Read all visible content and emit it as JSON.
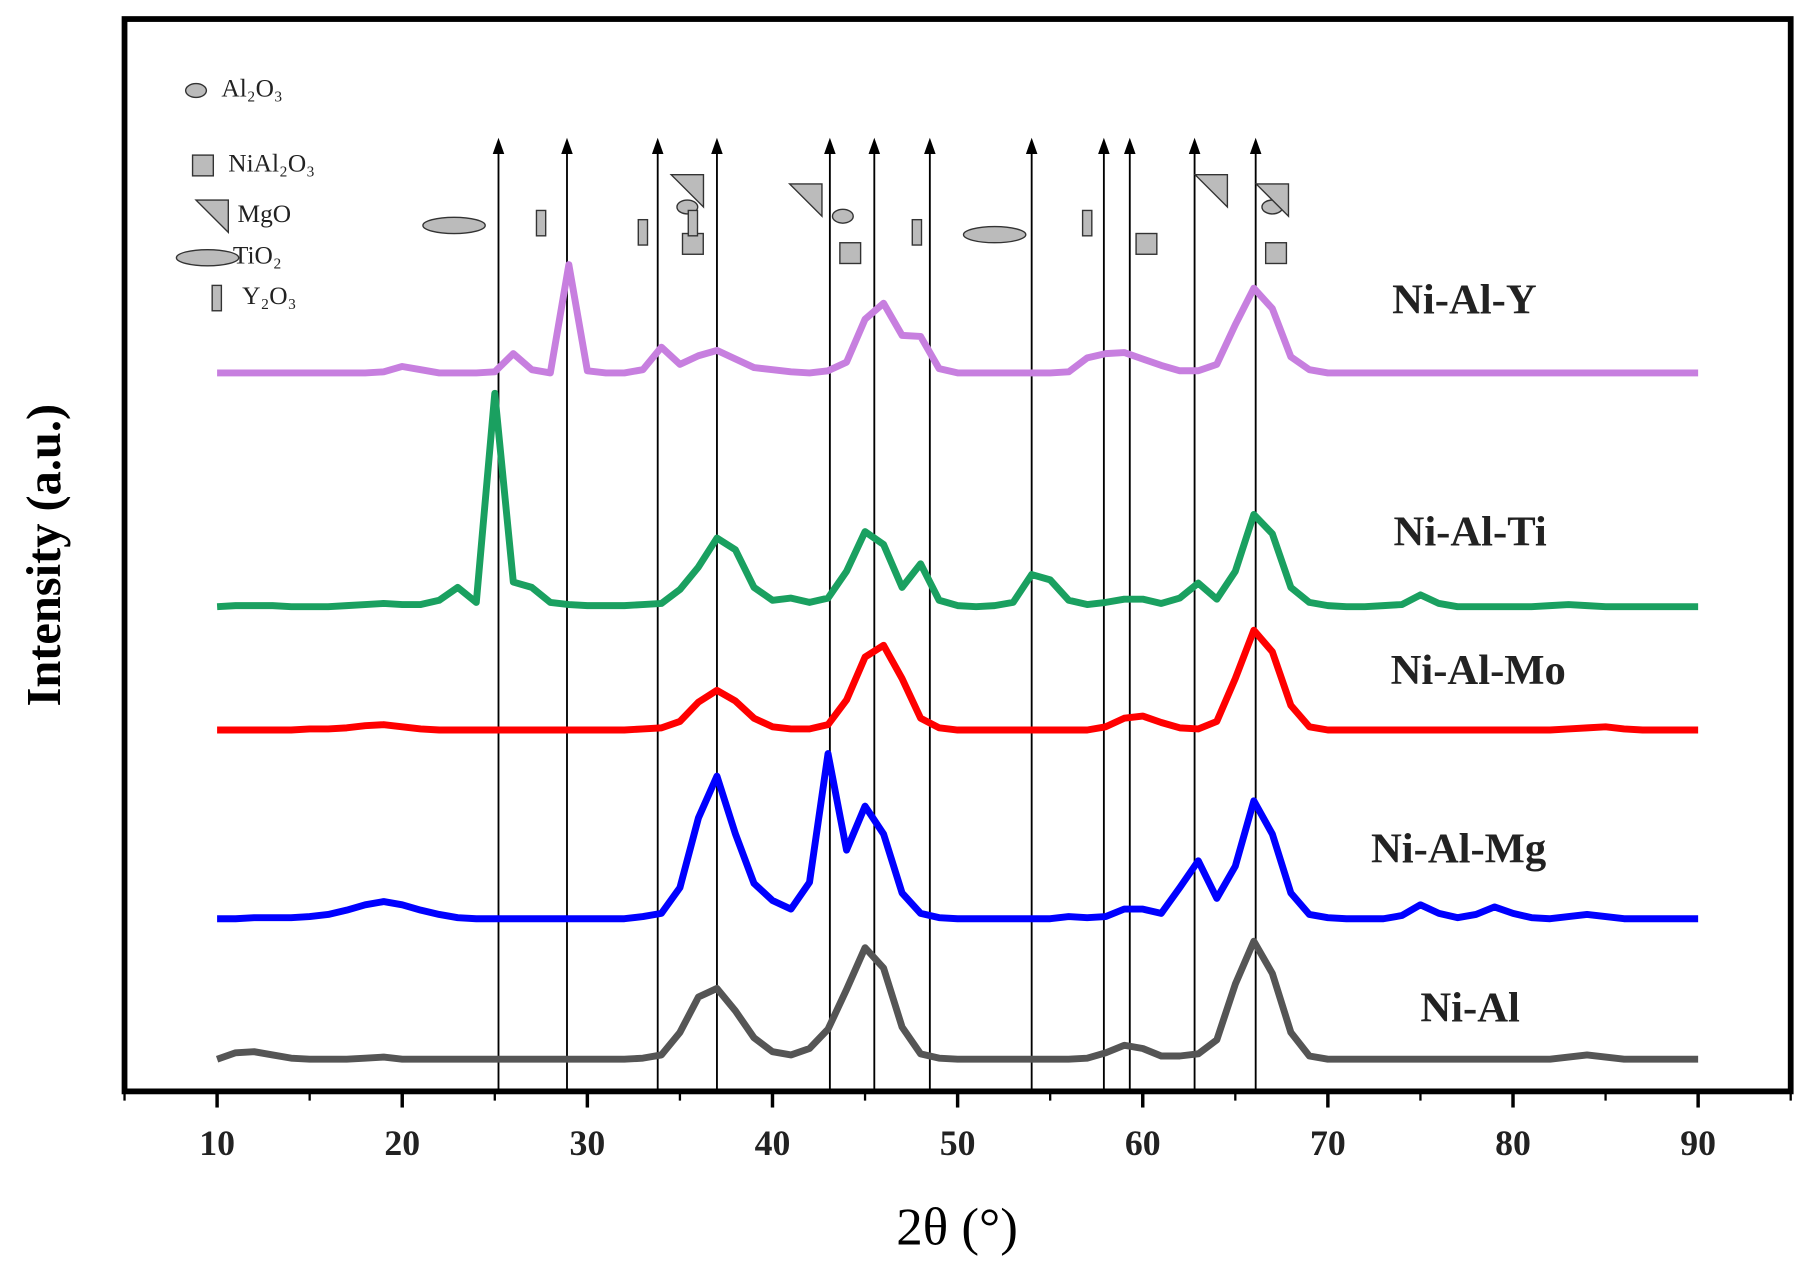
{
  "chart_data": {
    "type": "line",
    "xlabel": "2θ (°)",
    "ylabel": "Intensity (a.u.)",
    "xlim": [
      5,
      95
    ],
    "ylim": [
      0,
      100
    ],
    "xticks": [
      10,
      20,
      30,
      40,
      50,
      60,
      70,
      80,
      90
    ],
    "xticks_minor": [
      5,
      15,
      25,
      35,
      45,
      55,
      65,
      75,
      85,
      95
    ],
    "x": [
      10,
      11,
      12,
      13,
      14,
      15,
      16,
      17,
      18,
      19,
      20,
      21,
      22,
      23,
      24,
      25,
      26,
      27,
      28,
      29,
      30,
      31,
      32,
      33,
      34,
      35,
      36,
      37,
      38,
      39,
      40,
      41,
      42,
      43,
      44,
      45,
      46,
      47,
      48,
      49,
      50,
      51,
      52,
      53,
      54,
      55,
      56,
      57,
      58,
      59,
      60,
      61,
      62,
      63,
      64,
      65,
      66,
      67,
      68,
      69,
      70,
      71,
      72,
      73,
      74,
      75,
      76,
      77,
      78,
      79,
      80,
      81,
      82,
      83,
      84,
      85,
      86,
      87,
      88,
      89,
      90
    ],
    "series": [
      {
        "name": "Ni-Al",
        "color": "#555555",
        "values": [
          3.0,
          3.6,
          3.7,
          3.4,
          3.1,
          3.0,
          3.0,
          3.0,
          3.1,
          3.2,
          3.0,
          3.0,
          3.0,
          3.0,
          3.0,
          3.0,
          3.0,
          3.0,
          3.0,
          3.0,
          3.0,
          3.0,
          3.0,
          3.1,
          3.4,
          5.5,
          8.8,
          9.6,
          7.5,
          5.0,
          3.7,
          3.4,
          4.0,
          5.8,
          9.5,
          13.4,
          11.5,
          6.0,
          3.5,
          3.1,
          3.0,
          3.0,
          3.0,
          3.0,
          3.0,
          3.0,
          3.0,
          3.1,
          3.6,
          4.3,
          4.0,
          3.3,
          3.3,
          3.5,
          4.8,
          10.0,
          14.0,
          11.0,
          5.5,
          3.3,
          3.0,
          3.0,
          3.0,
          3.0,
          3.0,
          3.0,
          3.0,
          3.0,
          3.0,
          3.0,
          3.0,
          3.0,
          3.0,
          3.2,
          3.4,
          3.2,
          3.0,
          3.0,
          3.0,
          3.0,
          3.0
        ]
      },
      {
        "name": "Ni-Al-Mg",
        "color": "#0000ff",
        "values": [
          16.1,
          16.1,
          16.2,
          16.2,
          16.2,
          16.3,
          16.5,
          16.9,
          17.4,
          17.7,
          17.4,
          16.9,
          16.5,
          16.2,
          16.1,
          16.1,
          16.1,
          16.1,
          16.1,
          16.1,
          16.1,
          16.1,
          16.1,
          16.3,
          16.6,
          19.0,
          25.5,
          29.4,
          24.0,
          19.4,
          17.8,
          17.0,
          19.5,
          31.5,
          22.5,
          26.6,
          24.0,
          18.5,
          16.6,
          16.2,
          16.1,
          16.1,
          16.1,
          16.1,
          16.1,
          16.1,
          16.3,
          16.2,
          16.3,
          17.0,
          17.0,
          16.6,
          19.0,
          21.5,
          18.0,
          21.0,
          27.1,
          24.0,
          18.5,
          16.5,
          16.2,
          16.1,
          16.1,
          16.1,
          16.4,
          17.4,
          16.6,
          16.2,
          16.5,
          17.2,
          16.6,
          16.2,
          16.1,
          16.3,
          16.5,
          16.3,
          16.1,
          16.1,
          16.1,
          16.1,
          16.1
        ]
      },
      {
        "name": "Ni-Al-Mo",
        "color": "#ff0000",
        "values": [
          33.7,
          33.7,
          33.7,
          33.7,
          33.7,
          33.8,
          33.8,
          33.9,
          34.1,
          34.2,
          34.0,
          33.8,
          33.7,
          33.7,
          33.7,
          33.7,
          33.7,
          33.7,
          33.7,
          33.7,
          33.7,
          33.7,
          33.7,
          33.8,
          33.9,
          34.5,
          36.3,
          37.4,
          36.4,
          34.8,
          34.0,
          33.8,
          33.8,
          34.2,
          36.5,
          40.5,
          41.6,
          38.5,
          34.8,
          33.9,
          33.7,
          33.7,
          33.7,
          33.7,
          33.7,
          33.7,
          33.7,
          33.7,
          34.0,
          34.8,
          35.0,
          34.4,
          33.9,
          33.8,
          34.5,
          38.5,
          43.0,
          41.0,
          36.0,
          34.0,
          33.7,
          33.7,
          33.7,
          33.7,
          33.7,
          33.7,
          33.7,
          33.7,
          33.7,
          33.7,
          33.7,
          33.7,
          33.7,
          33.8,
          33.9,
          34.0,
          33.8,
          33.7,
          33.7,
          33.7,
          33.7
        ]
      },
      {
        "name": "Ni-Al-Ti",
        "color": "#1aa060",
        "values": [
          45.2,
          45.3,
          45.3,
          45.3,
          45.2,
          45.2,
          45.2,
          45.3,
          45.4,
          45.5,
          45.4,
          45.4,
          45.8,
          47.0,
          45.6,
          65.1,
          47.5,
          47.0,
          45.6,
          45.4,
          45.3,
          45.3,
          45.3,
          45.4,
          45.5,
          46.8,
          48.9,
          51.6,
          50.5,
          47.0,
          45.8,
          46.0,
          45.6,
          46.0,
          48.5,
          52.2,
          51.0,
          47.0,
          49.2,
          45.8,
          45.3,
          45.2,
          45.3,
          45.6,
          48.2,
          47.7,
          45.8,
          45.4,
          45.6,
          45.9,
          45.9,
          45.5,
          46.0,
          47.4,
          45.9,
          48.5,
          53.8,
          52.0,
          47.0,
          45.6,
          45.3,
          45.2,
          45.2,
          45.3,
          45.4,
          46.3,
          45.5,
          45.2,
          45.2,
          45.2,
          45.2,
          45.2,
          45.3,
          45.4,
          45.3,
          45.2,
          45.2,
          45.2,
          45.2,
          45.2,
          45.2
        ]
      },
      {
        "name": "Ni-Al-Y",
        "color": "#c77fdf",
        "values": [
          67.0,
          67.0,
          67.0,
          67.0,
          67.0,
          67.0,
          67.0,
          67.0,
          67.0,
          67.1,
          67.6,
          67.3,
          67.0,
          67.0,
          67.0,
          67.1,
          68.8,
          67.3,
          67.0,
          77.1,
          67.2,
          67.0,
          67.0,
          67.3,
          69.4,
          67.8,
          68.6,
          69.1,
          68.3,
          67.5,
          67.3,
          67.1,
          67.0,
          67.2,
          68.0,
          72.0,
          73.5,
          70.5,
          70.4,
          67.4,
          67.0,
          67.0,
          67.0,
          67.0,
          67.0,
          67.0,
          67.1,
          68.4,
          68.8,
          68.9,
          68.3,
          67.7,
          67.2,
          67.2,
          67.8,
          71.5,
          74.9,
          73.0,
          68.5,
          67.3,
          67.0,
          67.0,
          67.0,
          67.0,
          67.0,
          67.0,
          67.0,
          67.0,
          67.0,
          67.0,
          67.0,
          67.0,
          67.0,
          67.0,
          67.0,
          67.0,
          67.0,
          67.0,
          67.0,
          67.0,
          67.0
        ]
      }
    ],
    "reference_lines": [
      25.2,
      28.9,
      33.8,
      37.0,
      43.1,
      45.5,
      48.5,
      54.0,
      57.9,
      59.3,
      62.8,
      66.1
    ],
    "phases": [
      {
        "name": "Al₂O₃",
        "marker": "small-ellipse",
        "positions": [
          35.4,
          43.8,
          67.0
        ]
      },
      {
        "name": "NiAl₂O₃",
        "marker": "square",
        "positions": [
          35.7,
          44.2,
          60.2,
          67.2
        ]
      },
      {
        "name": "MgO",
        "marker": "triangle",
        "positions": [
          35.4,
          41.8,
          63.7,
          67.0
        ]
      },
      {
        "name": "TiO₂",
        "marker": "large-ellipse",
        "positions": [
          22.8,
          52.0
        ]
      },
      {
        "name": "Y₂O₃",
        "marker": "thin-rect",
        "positions": [
          27.5,
          33.0,
          35.7,
          47.8,
          57.0
        ]
      }
    ]
  }
}
